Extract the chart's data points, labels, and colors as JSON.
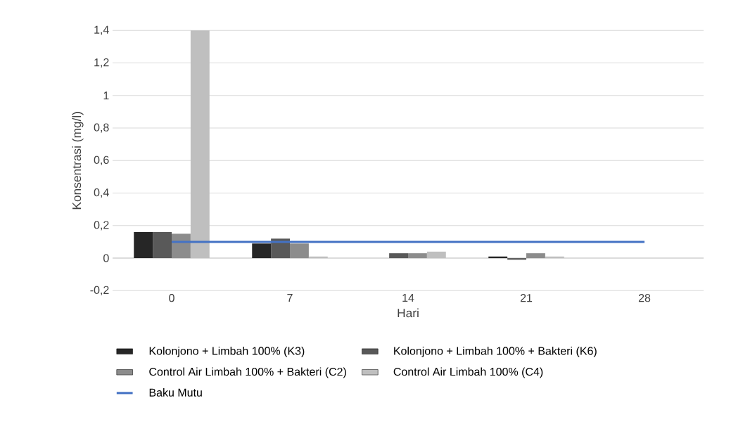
{
  "chart_data": {
    "type": "bar",
    "xlabel": "Hari",
    "ylabel": "Konsentrasi (mg/l)",
    "categories": [
      "0",
      "7",
      "14",
      "21",
      "28"
    ],
    "series": [
      {
        "name": "Kolonjono + Limbah 100% (K3)",
        "color": "#262626",
        "values": [
          0.16,
          0.09,
          0.0,
          0.01,
          null
        ]
      },
      {
        "name": "Kolonjono + Limbah 100% + Bakteri (K6)",
        "color": "#595959",
        "values": [
          0.16,
          0.12,
          0.03,
          -0.01,
          null
        ]
      },
      {
        "name": "Control Air Limbah 100% + Bakteri (C2)",
        "color": "#8c8c8c",
        "values": [
          0.15,
          0.09,
          0.03,
          0.03,
          null
        ]
      },
      {
        "name": "Control Air Limbah 100% (C4)",
        "color": "#bfbfbf",
        "values": [
          1.4,
          0.01,
          0.04,
          0.01,
          null
        ]
      },
      {
        "name": "Baku Mutu",
        "type": "line",
        "color": "#4472c4",
        "values": [
          0.1,
          0.1,
          0.1,
          0.1,
          0.1
        ]
      }
    ],
    "ylim": [
      -0.2,
      1.4
    ],
    "yticks": [
      {
        "value": -0.2,
        "label": "-0,2"
      },
      0,
      {
        "value": 0.2,
        "label": "0,2"
      },
      {
        "value": 0.4,
        "label": "0,4"
      },
      {
        "value": 0.6,
        "label": "0,6"
      },
      {
        "value": 0.8,
        "label": "0,8"
      },
      1,
      {
        "value": 1.2,
        "label": "1,2"
      },
      {
        "value": 1.4,
        "label": "1,4"
      }
    ],
    "grid": "y",
    "legend": "bottom"
  }
}
